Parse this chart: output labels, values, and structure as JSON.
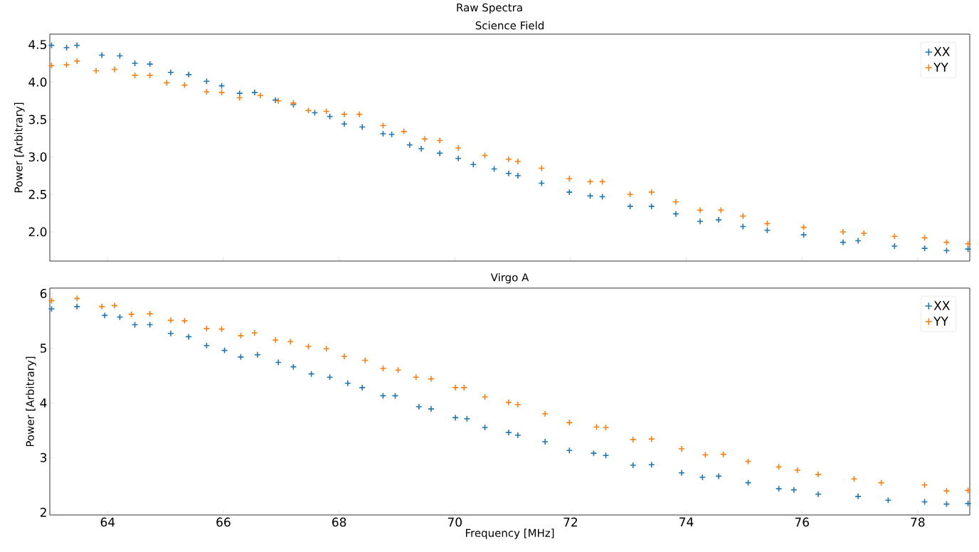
{
  "chart_data": [
    {
      "type": "scatter",
      "title": "Science Field",
      "ylabel": "Power [Arbitrary]",
      "annotations": [
        "Raw Spectra"
      ],
      "xlim": [
        63.0,
        78.9
      ],
      "ylim": [
        1.61,
        4.64
      ],
      "xticks": [
        64,
        66,
        68,
        70,
        72,
        74,
        76,
        78
      ],
      "yticks": [
        {
          "value": 2.0,
          "label": "2.0"
        },
        {
          "value": 2.5,
          "label": "2.5"
        },
        {
          "value": 3.0,
          "label": "3.0"
        },
        {
          "value": 3.5,
          "label": "3.5"
        },
        {
          "value": 4.0,
          "label": "4.0"
        },
        {
          "value": 4.5,
          "label": "4.5"
        }
      ],
      "tick_labels": "y",
      "legend": "top right",
      "marker": "cross",
      "series": [
        {
          "name": "XX",
          "color": "#1f77b4",
          "x": [
            63.03,
            63.29,
            63.47,
            63.9,
            64.21,
            64.47,
            64.73,
            65.09,
            65.4,
            65.71,
            65.97,
            66.28,
            66.54,
            66.9,
            67.21,
            67.58,
            67.84,
            68.09,
            68.4,
            68.76,
            68.91,
            69.22,
            69.42,
            69.74,
            70.06,
            70.32,
            70.68,
            70.93,
            71.09,
            71.5,
            71.98,
            72.34,
            72.55,
            73.03,
            73.4,
            73.82,
            74.24,
            74.56,
            74.98,
            75.4,
            76.03,
            76.71,
            76.97,
            77.6,
            78.12,
            78.5,
            78.87
          ],
          "values": [
            4.49,
            4.46,
            4.49,
            4.36,
            4.35,
            4.25,
            4.24,
            4.13,
            4.1,
            4.01,
            3.95,
            3.85,
            3.86,
            3.76,
            3.7,
            3.59,
            3.54,
            3.44,
            3.4,
            3.31,
            3.3,
            3.16,
            3.11,
            3.05,
            2.98,
            2.9,
            2.84,
            2.78,
            2.75,
            2.65,
            2.53,
            2.48,
            2.47,
            2.34,
            2.34,
            2.24,
            2.14,
            2.16,
            2.07,
            2.02,
            1.96,
            1.86,
            1.88,
            1.81,
            1.78,
            1.75,
            1.77
          ]
        },
        {
          "name": "YY",
          "color": "#ff7f0e",
          "x": [
            63.03,
            63.29,
            63.47,
            63.8,
            64.12,
            64.47,
            64.73,
            65.02,
            65.33,
            65.71,
            65.97,
            66.28,
            66.64,
            66.95,
            67.21,
            67.47,
            67.78,
            68.09,
            68.35,
            68.76,
            69.12,
            69.48,
            69.74,
            70.06,
            70.52,
            70.93,
            71.09,
            71.5,
            71.98,
            72.34,
            72.55,
            73.03,
            73.4,
            73.82,
            74.24,
            74.6,
            74.98,
            75.4,
            76.03,
            76.71,
            77.07,
            77.6,
            78.12,
            78.5,
            78.87
          ],
          "values": [
            4.22,
            4.23,
            4.28,
            4.15,
            4.17,
            4.09,
            4.09,
            3.99,
            3.96,
            3.87,
            3.86,
            3.79,
            3.82,
            3.75,
            3.72,
            3.62,
            3.61,
            3.57,
            3.57,
            3.42,
            3.34,
            3.24,
            3.22,
            3.12,
            3.02,
            2.97,
            2.94,
            2.85,
            2.71,
            2.67,
            2.67,
            2.5,
            2.53,
            2.4,
            2.29,
            2.29,
            2.21,
            2.11,
            2.06,
            2.0,
            1.98,
            1.94,
            1.92,
            1.86,
            1.84
          ]
        }
      ]
    },
    {
      "type": "scatter",
      "title": "Virgo A",
      "xlabel": "Frequency [MHz]",
      "ylabel": "Power [Arbitrary]",
      "xlim": [
        63.0,
        78.9
      ],
      "ylim": [
        1.95,
        6.1
      ],
      "xticks": [
        64,
        66,
        68,
        70,
        72,
        74,
        76,
        78
      ],
      "yticks": [
        2,
        3,
        4,
        5,
        6
      ],
      "legend": "top right",
      "marker": "cross",
      "series": [
        {
          "name": "XX",
          "color": "#1f77b4",
          "x": [
            63.03,
            63.47,
            63.95,
            64.21,
            64.47,
            64.73,
            65.09,
            65.4,
            65.71,
            66.02,
            66.3,
            66.59,
            66.95,
            67.21,
            67.52,
            67.84,
            68.15,
            68.4,
            68.76,
            68.97,
            69.38,
            69.59,
            70.01,
            70.21,
            70.52,
            70.93,
            71.09,
            71.56,
            71.98,
            72.4,
            72.61,
            73.08,
            73.4,
            73.92,
            74.28,
            74.56,
            75.07,
            75.6,
            75.86,
            76.28,
            76.97,
            77.49,
            78.12,
            78.5,
            78.87
          ],
          "values": [
            5.72,
            5.76,
            5.6,
            5.57,
            5.43,
            5.43,
            5.27,
            5.21,
            5.05,
            4.96,
            4.84,
            4.88,
            4.74,
            4.66,
            4.53,
            4.47,
            4.36,
            4.28,
            4.13,
            4.13,
            3.93,
            3.89,
            3.73,
            3.71,
            3.55,
            3.46,
            3.41,
            3.29,
            3.13,
            3.08,
            3.04,
            2.86,
            2.87,
            2.72,
            2.64,
            2.66,
            2.54,
            2.43,
            2.41,
            2.33,
            2.29,
            2.22,
            2.19,
            2.15,
            2.16
          ]
        },
        {
          "name": "YY",
          "color": "#ff7f0e",
          "x": [
            63.03,
            63.47,
            63.9,
            64.12,
            64.41,
            64.73,
            65.09,
            65.33,
            65.71,
            65.97,
            66.3,
            66.54,
            66.9,
            67.16,
            67.47,
            67.78,
            68.09,
            68.45,
            68.76,
            69.02,
            69.33,
            69.59,
            70.01,
            70.16,
            70.52,
            70.93,
            71.09,
            71.56,
            71.98,
            72.45,
            72.61,
            73.08,
            73.4,
            73.92,
            74.33,
            74.64,
            75.07,
            75.6,
            75.92,
            76.28,
            76.9,
            77.37,
            78.12,
            78.5,
            78.87
          ],
          "values": [
            5.87,
            5.91,
            5.76,
            5.78,
            5.62,
            5.63,
            5.51,
            5.5,
            5.36,
            5.35,
            5.23,
            5.28,
            5.15,
            5.12,
            5.03,
            4.99,
            4.85,
            4.78,
            4.63,
            4.6,
            4.47,
            4.44,
            4.28,
            4.28,
            4.11,
            4.01,
            3.97,
            3.8,
            3.64,
            3.56,
            3.55,
            3.33,
            3.34,
            3.16,
            3.05,
            3.06,
            2.93,
            2.83,
            2.77,
            2.69,
            2.61,
            2.54,
            2.5,
            2.39,
            2.4
          ]
        }
      ]
    }
  ]
}
